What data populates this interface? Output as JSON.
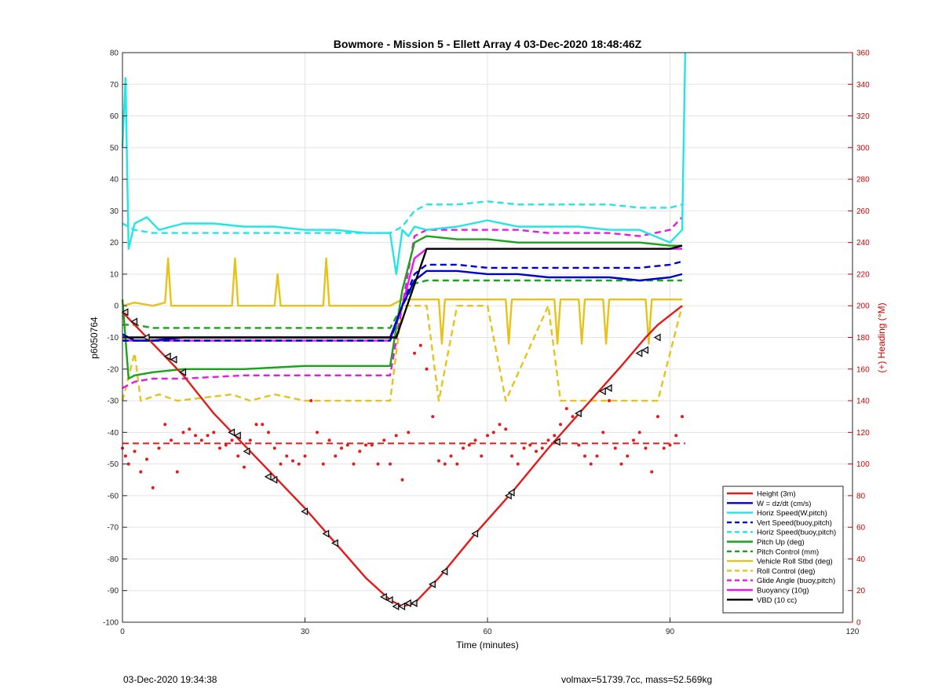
{
  "chart_data": {
    "type": "line",
    "title": "Bowmore - Mission 5 - Ellett Array 4 03-Dec-2020 18:48:46Z",
    "xlabel": "Time (minutes)",
    "ylabel": "p6050764",
    "y2label": "(+) Heading (°M)",
    "xlim": [
      0,
      120
    ],
    "ylim": [
      -100,
      80
    ],
    "y2lim": [
      0,
      360
    ],
    "xticks": [
      0,
      30,
      60,
      90,
      120
    ],
    "yticks": [
      -100,
      -90,
      -80,
      -70,
      -60,
      -50,
      -40,
      -30,
      -20,
      -10,
      0,
      10,
      20,
      30,
      40,
      50,
      60,
      70,
      80
    ],
    "y2ticks": [
      0,
      20,
      40,
      60,
      80,
      100,
      120,
      140,
      160,
      180,
      200,
      220,
      240,
      260,
      280,
      300,
      320,
      340,
      360
    ],
    "grid": true,
    "legend_position": "bottom-right",
    "series": [
      {
        "name": "Height (3m)",
        "color": "#e41a1a",
        "style": "solid",
        "x": [
          0,
          5,
          10,
          15,
          20,
          25,
          30,
          35,
          40,
          44,
          46,
          48,
          52,
          58,
          64,
          70,
          76,
          82,
          86,
          88,
          90,
          92
        ],
        "y": [
          -2,
          -12,
          -22,
          -34,
          -44,
          -54,
          -64,
          -75,
          -86,
          -93,
          -95,
          -94,
          -86,
          -72,
          -59,
          -45,
          -32,
          -19,
          -10,
          -6,
          -3,
          0
        ]
      },
      {
        "name": "W = dz/dt (cm/s)",
        "color": "#0000cc",
        "style": "solid",
        "x": [
          0,
          2,
          5,
          10,
          20,
          30,
          40,
          44,
          46,
          48,
          50,
          55,
          60,
          65,
          70,
          75,
          80,
          85,
          90,
          92
        ],
        "y": [
          -9,
          -11,
          -11,
          -10,
          -10,
          -10,
          -10,
          -10,
          0,
          8,
          11,
          11,
          10,
          10,
          9,
          9,
          9,
          8,
          9,
          10
        ]
      },
      {
        "name": "Horiz Speed(W,pitch)",
        "color": "#22e6e6",
        "style": "solid",
        "x": [
          0,
          0.5,
          1,
          2,
          4,
          6,
          10,
          15,
          20,
          25,
          30,
          35,
          40,
          44,
          45,
          46,
          47,
          48,
          50,
          55,
          60,
          65,
          70,
          75,
          80,
          85,
          90,
          92,
          92.5
        ],
        "y": [
          50,
          72,
          18,
          26,
          28,
          24,
          26,
          26,
          25,
          25,
          24,
          24,
          23,
          23,
          10,
          24,
          22,
          25,
          24,
          25,
          27,
          25,
          25,
          25,
          24,
          24,
          20,
          24,
          80
        ]
      },
      {
        "name": "Vert Speed(buoy,pitch)",
        "color": "#0000cc",
        "style": "dashed",
        "x": [
          0,
          5,
          10,
          20,
          30,
          40,
          44,
          46,
          48,
          50,
          55,
          60,
          65,
          70,
          75,
          80,
          85,
          90,
          92
        ],
        "y": [
          -11,
          -11,
          -11,
          -11,
          -11,
          -11,
          -11,
          0,
          10,
          13,
          13,
          12,
          12,
          12,
          12,
          12,
          12,
          13,
          14
        ]
      },
      {
        "name": "Horiz Speed(buoy,pitch)",
        "color": "#22e6e6",
        "style": "dashed",
        "x": [
          0,
          2,
          5,
          10,
          20,
          30,
          40,
          44,
          46,
          48,
          50,
          55,
          60,
          65,
          70,
          75,
          80,
          85,
          90,
          92
        ],
        "y": [
          26,
          24,
          23,
          23,
          23,
          23,
          23,
          23,
          25,
          30,
          32,
          32,
          33,
          32,
          32,
          32,
          32,
          31,
          31,
          32
        ]
      },
      {
        "name": "Pitch Up (deg)",
        "color": "#1aa31a",
        "style": "solid",
        "x": [
          0,
          1,
          2,
          5,
          10,
          20,
          30,
          40,
          44,
          46,
          48,
          50,
          55,
          60,
          65,
          70,
          75,
          80,
          85,
          90,
          92
        ],
        "y": [
          2,
          -23,
          -22,
          -21,
          -20,
          -20,
          -19,
          -19,
          -19,
          5,
          20,
          22,
          21,
          21,
          20,
          20,
          20,
          20,
          20,
          19,
          19
        ]
      },
      {
        "name": "Pitch Control (mm)",
        "color": "#1aa31a",
        "style": "dashed",
        "x": [
          0,
          2,
          5,
          10,
          20,
          30,
          40,
          44,
          46,
          48,
          50,
          55,
          60,
          65,
          70,
          75,
          80,
          85,
          90,
          92
        ],
        "y": [
          -6,
          -6,
          -7,
          -7,
          -7,
          -7,
          -7,
          -7,
          0,
          7,
          8,
          8,
          8,
          8,
          8,
          8,
          8,
          8,
          8,
          8
        ]
      },
      {
        "name": "Vehicle Roll Stbd (deg)",
        "color": "#e6c31a",
        "style": "solid",
        "x": [
          0,
          2,
          5,
          7,
          7.5,
          8,
          10,
          18,
          18.5,
          19,
          25,
          25.5,
          26,
          33,
          33.5,
          34,
          44,
          46,
          48,
          50,
          52,
          52.5,
          53,
          63,
          63.5,
          64,
          71,
          71.5,
          72,
          75,
          75.5,
          76,
          79,
          79.5,
          80,
          86,
          86.5,
          87,
          92
        ],
        "y": [
          0,
          1,
          0,
          1,
          15,
          0,
          0,
          0,
          15,
          0,
          0,
          10,
          0,
          0,
          15,
          0,
          0,
          2,
          2,
          2,
          2,
          -12,
          2,
          2,
          -12,
          2,
          2,
          -12,
          2,
          2,
          -12,
          2,
          2,
          -12,
          2,
          2,
          -12,
          2,
          2
        ]
      },
      {
        "name": "Roll Control (deg)",
        "color": "#e6c31a",
        "style": "dashed",
        "x": [
          0,
          2,
          3,
          6,
          9,
          18,
          21,
          25,
          30,
          34,
          44,
          46,
          48,
          50,
          52,
          55,
          60,
          63,
          70,
          72,
          75,
          79,
          86,
          88,
          92
        ],
        "y": [
          -30,
          -15,
          -30,
          -28,
          -30,
          -28,
          -30,
          -28,
          -30,
          -30,
          -30,
          0,
          0,
          0,
          -30,
          0,
          0,
          -30,
          0,
          -30,
          -30,
          -30,
          -30,
          -30,
          0
        ]
      },
      {
        "name": "Glide Angle (buoy,pitch)",
        "color": "#e61ae6",
        "style": "dashed",
        "x": [
          0,
          1,
          2,
          5,
          10,
          20,
          30,
          40,
          44,
          46,
          48,
          50,
          55,
          60,
          65,
          70,
          75,
          80,
          85,
          90,
          92
        ],
        "y": [
          -26,
          -25,
          -24,
          -23,
          -23,
          -22,
          -22,
          -22,
          -22,
          0,
          22,
          24,
          24,
          24,
          24,
          23,
          23,
          23,
          22,
          24,
          28
        ]
      },
      {
        "name": "Buoyancy (10g)",
        "color": "#e61ae6",
        "style": "solid",
        "x": [
          0,
          5,
          10,
          20,
          30,
          40,
          44,
          46,
          48,
          50,
          60,
          70,
          80,
          90,
          92
        ],
        "y": [
          -11,
          -11,
          -11,
          -11,
          -11,
          -11,
          -11,
          0,
          15,
          18,
          18,
          18,
          18,
          18,
          18
        ]
      },
      {
        "name": "VBD (10 cc)",
        "color": "#000000",
        "style": "solid",
        "x": [
          0,
          5,
          10,
          20,
          30,
          40,
          45,
          50,
          60,
          70,
          80,
          90,
          92
        ],
        "y": [
          -10,
          -10,
          -10,
          -10,
          -10,
          -10,
          -10,
          18,
          18,
          18,
          18,
          18,
          19
        ]
      }
    ],
    "heading_axis": "right",
    "heading_points": {
      "name": "Heading (scatter)",
      "color": "#e41a1a",
      "x": [
        0,
        0.5,
        1,
        2,
        3,
        4,
        5,
        6,
        7,
        8,
        9,
        10,
        11,
        12,
        13,
        14,
        15,
        16,
        17,
        18,
        19,
        20,
        21,
        22,
        23,
        24,
        25,
        26,
        27,
        28,
        29,
        30,
        31,
        32,
        33,
        34,
        35,
        36,
        37,
        38,
        39,
        40,
        41,
        42,
        43,
        44,
        45,
        46,
        47,
        48,
        49,
        50,
        51,
        52,
        53,
        54,
        55,
        56,
        57,
        58,
        59,
        60,
        61,
        62,
        63,
        64,
        65,
        66,
        67,
        68,
        69,
        70,
        71,
        72,
        73,
        74,
        75,
        76,
        77,
        78,
        79,
        80,
        81,
        82,
        83,
        84,
        85,
        86,
        87,
        88,
        89,
        90,
        91,
        92
      ],
      "y": [
        110,
        105,
        100,
        108,
        95,
        103,
        85,
        110,
        125,
        115,
        95,
        120,
        122,
        118,
        115,
        118,
        120,
        110,
        112,
        115,
        105,
        98,
        115,
        125,
        125,
        120,
        110,
        100,
        105,
        102,
        100,
        105,
        140,
        120,
        100,
        115,
        105,
        110,
        112,
        100,
        108,
        112,
        112,
        100,
        115,
        100,
        118,
        90,
        120,
        170,
        175,
        160,
        130,
        102,
        100,
        105,
        100,
        110,
        112,
        115,
        105,
        118,
        120,
        125,
        122,
        105,
        100,
        110,
        112,
        108,
        110,
        115,
        118,
        125,
        135,
        130,
        112,
        105,
        100,
        105,
        120,
        140,
        110,
        100,
        105,
        115,
        120,
        110,
        95,
        130,
        110,
        112,
        118,
        130
      ]
    },
    "mean_heading": {
      "name": "Mean Heading",
      "color": "#e41a1a",
      "style": "dashed",
      "y": 113
    },
    "dive_markers": {
      "name": "Markers",
      "color": "#000000",
      "x": [
        0.5,
        2,
        4,
        7.5,
        8.5,
        10,
        18,
        19,
        20.5,
        24,
        25,
        30,
        33.5,
        35,
        43,
        44,
        45,
        46,
        47,
        48,
        51,
        53,
        58,
        63.5,
        64,
        71.5,
        75,
        79,
        80,
        85,
        86,
        88
      ],
      "y": [
        -2,
        -5,
        -10,
        -16,
        -17,
        -21,
        -40,
        -41,
        -46,
        -54,
        -55,
        -65,
        -72,
        -75,
        -92,
        -93,
        -95,
        -95,
        -94,
        -94,
        -88,
        -84,
        -72,
        -60,
        -59,
        -43,
        -34,
        -27,
        -26,
        -15,
        -14,
        -10
      ]
    },
    "footer": {
      "timestamp": "03-Dec-2020 19:34:38",
      "info": "volmax=51739.7cc, mass=52.569kg"
    }
  }
}
